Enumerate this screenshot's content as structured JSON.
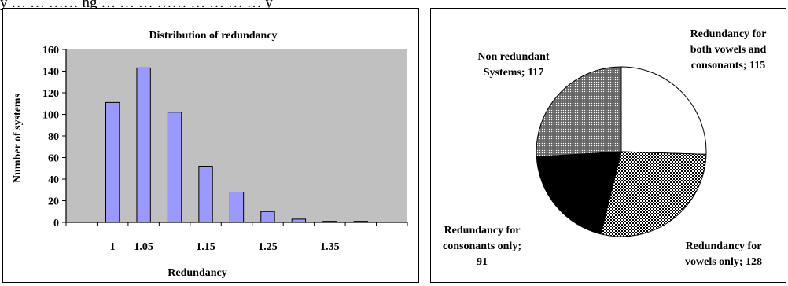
{
  "caption_fragment": "y … … …… ng … … … …… … … … … y",
  "chart_data": [
    {
      "type": "bar",
      "title": "Distribution of redundancy",
      "xlabel": "Redundancy",
      "ylabel": "Number of systems",
      "ylim": [
        0,
        160
      ],
      "yticks": [
        0,
        20,
        40,
        60,
        80,
        100,
        120,
        140,
        160
      ],
      "xtick_labels": [
        "1",
        "1.05",
        "1.15",
        "1.25",
        "1.35"
      ],
      "categories": [
        "0.95",
        "1",
        "1.05",
        "1.1",
        "1.15",
        "1.2",
        "1.25",
        "1.3",
        "1.35",
        "1.4",
        "1.45"
      ],
      "values": [
        0,
        111,
        143,
        102,
        52,
        28,
        10,
        3,
        1,
        1,
        0
      ],
      "grid": false,
      "colors": {
        "plot_bg": "#c0c0c0",
        "bar": "#9999ff"
      }
    },
    {
      "type": "pie",
      "slices": [
        {
          "label": "Redundancy for both vowels and consonants",
          "value": 115,
          "label_lines": [
            "Redundancy for",
            "both vowels and",
            "consonants; 115"
          ],
          "fill": "white"
        },
        {
          "label": "Redundancy for vowels only",
          "value": 128,
          "label_lines": [
            "Redundancy for",
            "vowels only; 128"
          ],
          "fill": "checker"
        },
        {
          "label": "Redundancy for consonants only",
          "value": 91,
          "label_lines": [
            "Redundancy for",
            "consonants only;",
            "91"
          ],
          "fill": "black"
        },
        {
          "label": "Non redundant Systems",
          "value": 117,
          "label_lines": [
            "Non redundant",
            "Systems; 117"
          ],
          "fill": "dotted-gray"
        }
      ]
    }
  ]
}
